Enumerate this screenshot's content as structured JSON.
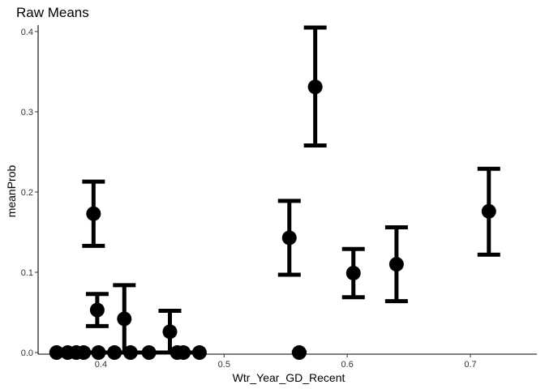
{
  "chart_data": {
    "type": "scatter",
    "title": "Raw Means",
    "xlabel": "Wtr_Year_GD_Recent",
    "ylabel": "meanProb",
    "xlim": [
      0.349,
      0.754
    ],
    "ylim": [
      -0.002,
      0.408
    ],
    "xticks": [
      0.4,
      0.5,
      0.6,
      0.7
    ],
    "xtick_labels": [
      "0.4",
      "0.5",
      "0.6",
      "0.7"
    ],
    "yticks": [
      0.0,
      0.1,
      0.2,
      0.3,
      0.4
    ],
    "ytick_labels": [
      "0.0",
      "0.1",
      "0.2",
      "0.3",
      "0.4"
    ],
    "grid": false,
    "legend": "none",
    "points": [
      {
        "x": 0.364,
        "y": 0.0
      },
      {
        "x": 0.373,
        "y": 0.0
      },
      {
        "x": 0.38,
        "y": 0.0
      },
      {
        "x": 0.386,
        "y": 0.0
      },
      {
        "x": 0.398,
        "y": 0.0
      },
      {
        "x": 0.411,
        "y": 0.0
      },
      {
        "x": 0.424,
        "y": 0.0
      },
      {
        "x": 0.439,
        "y": 0.0
      },
      {
        "x": 0.462,
        "y": 0.0
      },
      {
        "x": 0.467,
        "y": 0.0
      },
      {
        "x": 0.48,
        "y": 0.0
      },
      {
        "x": 0.561,
        "y": 0.0
      },
      {
        "x": 0.394,
        "y": 0.173,
        "ymin": 0.133,
        "ymax": 0.213
      },
      {
        "x": 0.397,
        "y": 0.053,
        "ymin": 0.033,
        "ymax": 0.073
      },
      {
        "x": 0.419,
        "y": 0.042,
        "ymin": 0.0,
        "ymax": 0.084
      },
      {
        "x": 0.456,
        "y": 0.026,
        "ymin": 0.0,
        "ymax": 0.052
      },
      {
        "x": 0.553,
        "y": 0.143,
        "ymin": 0.097,
        "ymax": 0.189
      },
      {
        "x": 0.574,
        "y": 0.331,
        "ymin": 0.258,
        "ymax": 0.405
      },
      {
        "x": 0.605,
        "y": 0.099,
        "ymin": 0.069,
        "ymax": 0.129
      },
      {
        "x": 0.64,
        "y": 0.11,
        "ymin": 0.064,
        "ymax": 0.156
      },
      {
        "x": 0.715,
        "y": 0.176,
        "ymin": 0.122,
        "ymax": 0.229
      }
    ],
    "zero_bars": [
      {
        "xmin": 0.36,
        "xmax": 0.484,
        "y": 0.0
      },
      {
        "xmin": 0.555,
        "xmax": 0.567,
        "y": 0.0
      }
    ],
    "colors": {
      "point": "#000000",
      "errorbar": "#000000",
      "axis": "#000000"
    }
  }
}
